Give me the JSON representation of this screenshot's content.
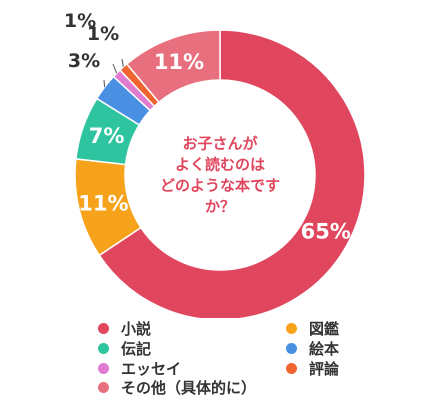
{
  "chart_data": {
    "type": "donut",
    "title": "お子さんがよく読むのはどのような本ですか？",
    "title_lines": [
      "お子さんが",
      "よく読むのは",
      "どのような本です",
      "か？"
    ],
    "slices": [
      {
        "label": "小説",
        "value": 65,
        "value_label": "65%",
        "color": "#e0465e"
      },
      {
        "label": "図鑑",
        "value": 11,
        "value_label": "11%",
        "color": "#f7a21b"
      },
      {
        "label": "伝記",
        "value": 7,
        "value_label": "7%",
        "color": "#2ec4a0"
      },
      {
        "label": "絵本",
        "value": 3,
        "value_label": "3%",
        "color": "#4a90e2"
      },
      {
        "label": "エッセイ",
        "value": 1,
        "value_label": "1%",
        "color": "#e07bd0"
      },
      {
        "label": "評論",
        "value": 1,
        "value_label": "1%",
        "color": "#f06430"
      },
      {
        "label": "その他（具体的に）",
        "value": 11,
        "value_label": "11%",
        "color": "#e8707e"
      }
    ],
    "legend": {
      "placement": "bottom",
      "columns": [
        [
          "小説",
          "伝記",
          "エッセイ",
          "その他（具体的に）"
        ],
        [
          "図鑑",
          "絵本",
          "評論"
        ]
      ]
    }
  }
}
